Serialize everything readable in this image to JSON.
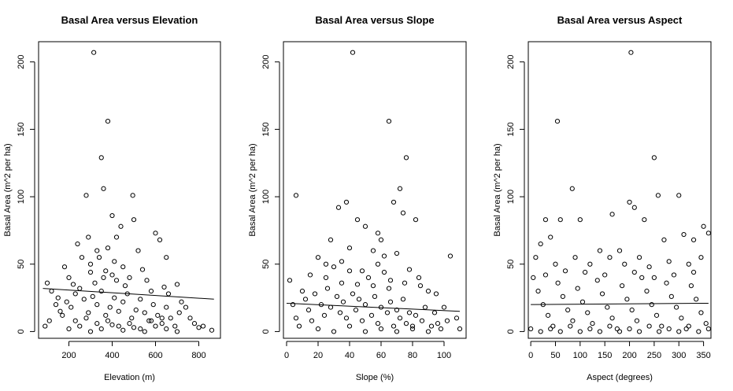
{
  "chart_data": [
    {
      "type": "scatter",
      "title": "Basal Area versus Elevation",
      "xlabel": "Elevation (m)",
      "ylabel": "Basal Area (m^2 per ha)",
      "xlim": [
        60,
        900
      ],
      "ylim": [
        -5,
        215
      ],
      "xticks": [
        200,
        400,
        600,
        800
      ],
      "yticks": [
        0,
        50,
        100,
        150,
        200
      ],
      "regression": {
        "x": [
          80,
          870
        ],
        "y": [
          32,
          24
        ]
      },
      "points": [
        [
          315,
          207
        ],
        [
          380,
          156
        ],
        [
          350,
          129
        ],
        [
          280,
          101
        ],
        [
          495,
          101
        ],
        [
          360,
          106
        ],
        [
          400,
          86
        ],
        [
          440,
          78
        ],
        [
          500,
          83
        ],
        [
          600,
          73
        ],
        [
          620,
          68
        ],
        [
          240,
          65
        ],
        [
          290,
          70
        ],
        [
          420,
          70
        ],
        [
          520,
          60
        ],
        [
          650,
          55
        ],
        [
          180,
          48
        ],
        [
          200,
          40
        ],
        [
          220,
          35
        ],
        [
          260,
          55
        ],
        [
          300,
          50
        ],
        [
          330,
          60
        ],
        [
          370,
          45
        ],
        [
          410,
          52
        ],
        [
          450,
          48
        ],
        [
          480,
          40
        ],
        [
          540,
          46
        ],
        [
          560,
          38
        ],
        [
          580,
          30
        ],
        [
          640,
          33
        ],
        [
          660,
          28
        ],
        [
          700,
          35
        ],
        [
          720,
          22
        ],
        [
          740,
          18
        ],
        [
          760,
          10
        ],
        [
          780,
          6
        ],
        [
          800,
          3
        ],
        [
          820,
          4
        ],
        [
          860,
          1
        ],
        [
          120,
          30
        ],
        [
          140,
          20
        ],
        [
          160,
          15
        ],
        [
          100,
          36
        ],
        [
          110,
          8
        ],
        [
          90,
          4
        ],
        [
          150,
          25
        ],
        [
          170,
          12
        ],
        [
          190,
          22
        ],
        [
          210,
          18
        ],
        [
          230,
          28
        ],
        [
          250,
          32
        ],
        [
          270,
          24
        ],
        [
          290,
          14
        ],
        [
          310,
          26
        ],
        [
          330,
          20
        ],
        [
          350,
          30
        ],
        [
          370,
          12
        ],
        [
          390,
          18
        ],
        [
          410,
          25
        ],
        [
          430,
          15
        ],
        [
          450,
          22
        ],
        [
          470,
          28
        ],
        [
          490,
          10
        ],
        [
          510,
          16
        ],
        [
          530,
          24
        ],
        [
          550,
          14
        ],
        [
          570,
          8
        ],
        [
          590,
          20
        ],
        [
          610,
          12
        ],
        [
          630,
          6
        ],
        [
          650,
          18
        ],
        [
          670,
          10
        ],
        [
          690,
          4
        ],
        [
          710,
          14
        ],
        [
          200,
          2
        ],
        [
          250,
          4
        ],
        [
          300,
          0
        ],
        [
          350,
          2
        ],
        [
          400,
          5
        ],
        [
          450,
          1
        ],
        [
          500,
          3
        ],
        [
          550,
          0
        ],
        [
          600,
          4
        ],
        [
          650,
          2
        ],
        [
          700,
          0
        ],
        [
          230,
          8
        ],
        [
          280,
          10
        ],
        [
          330,
          6
        ],
        [
          380,
          8
        ],
        [
          430,
          4
        ],
        [
          480,
          6
        ],
        [
          530,
          2
        ],
        [
          580,
          8
        ],
        [
          630,
          10
        ],
        [
          320,
          36
        ],
        [
          360,
          40
        ],
        [
          400,
          42
        ],
        [
          340,
          55
        ],
        [
          380,
          62
        ],
        [
          420,
          38
        ],
        [
          460,
          34
        ],
        [
          300,
          44
        ]
      ]
    },
    {
      "type": "scatter",
      "title": "Basal Area versus Slope",
      "xlabel": "Slope (%)",
      "ylabel": "Basal Area (m^2 per ha)",
      "xlim": [
        -2,
        114
      ],
      "ylim": [
        -5,
        215
      ],
      "xticks": [
        0,
        20,
        40,
        60,
        80,
        100
      ],
      "yticks": [
        0,
        50,
        100,
        150,
        200
      ],
      "regression": {
        "x": [
          0,
          110
        ],
        "y": [
          21,
          15
        ]
      },
      "points": [
        [
          42,
          207
        ],
        [
          65,
          156
        ],
        [
          76,
          129
        ],
        [
          6,
          101
        ],
        [
          72,
          106
        ],
        [
          68,
          96
        ],
        [
          74,
          88
        ],
        [
          33,
          92
        ],
        [
          38,
          96
        ],
        [
          50,
          78
        ],
        [
          58,
          73
        ],
        [
          82,
          83
        ],
        [
          45,
          83
        ],
        [
          28,
          68
        ],
        [
          60,
          68
        ],
        [
          40,
          62
        ],
        [
          55,
          60
        ],
        [
          70,
          58
        ],
        [
          20,
          55
        ],
        [
          25,
          50
        ],
        [
          30,
          48
        ],
        [
          35,
          52
        ],
        [
          48,
          45
        ],
        [
          52,
          40
        ],
        [
          62,
          44
        ],
        [
          66,
          38
        ],
        [
          78,
          46
        ],
        [
          84,
          40
        ],
        [
          90,
          30
        ],
        [
          95,
          28
        ],
        [
          100,
          18
        ],
        [
          104,
          56
        ],
        [
          108,
          10
        ],
        [
          110,
          2
        ],
        [
          2,
          38
        ],
        [
          4,
          20
        ],
        [
          6,
          10
        ],
        [
          8,
          4
        ],
        [
          10,
          30
        ],
        [
          12,
          24
        ],
        [
          14,
          16
        ],
        [
          16,
          8
        ],
        [
          18,
          28
        ],
        [
          22,
          20
        ],
        [
          24,
          12
        ],
        [
          26,
          32
        ],
        [
          28,
          18
        ],
        [
          32,
          26
        ],
        [
          34,
          14
        ],
        [
          36,
          22
        ],
        [
          38,
          10
        ],
        [
          42,
          28
        ],
        [
          44,
          16
        ],
        [
          46,
          24
        ],
        [
          48,
          8
        ],
        [
          50,
          20
        ],
        [
          54,
          12
        ],
        [
          56,
          26
        ],
        [
          58,
          6
        ],
        [
          60,
          18
        ],
        [
          64,
          14
        ],
        [
          66,
          22
        ],
        [
          68,
          4
        ],
        [
          70,
          16
        ],
        [
          72,
          10
        ],
        [
          74,
          24
        ],
        [
          76,
          6
        ],
        [
          78,
          14
        ],
        [
          80,
          2
        ],
        [
          82,
          12
        ],
        [
          86,
          8
        ],
        [
          88,
          18
        ],
        [
          92,
          4
        ],
        [
          94,
          14
        ],
        [
          96,
          6
        ],
        [
          98,
          2
        ],
        [
          102,
          8
        ],
        [
          20,
          2
        ],
        [
          30,
          0
        ],
        [
          40,
          4
        ],
        [
          50,
          0
        ],
        [
          60,
          2
        ],
        [
          70,
          0
        ],
        [
          80,
          4
        ],
        [
          90,
          0
        ],
        [
          45,
          35
        ],
        [
          55,
          34
        ],
        [
          65,
          32
        ],
        [
          35,
          36
        ],
        [
          25,
          40
        ],
        [
          15,
          42
        ],
        [
          75,
          36
        ],
        [
          85,
          34
        ],
        [
          58,
          50
        ],
        [
          62,
          56
        ],
        [
          40,
          45
        ]
      ]
    },
    {
      "type": "scatter",
      "title": "Basal Area versus Aspect",
      "xlabel": "Aspect (degrees)",
      "ylabel": "Basal Area (m^2 per ha)",
      "xlim": [
        -5,
        365
      ],
      "ylim": [
        -5,
        215
      ],
      "xticks": [
        0,
        50,
        100,
        150,
        200,
        250,
        300,
        350
      ],
      "yticks": [
        0,
        50,
        100,
        150,
        200
      ],
      "regression": {
        "x": [
          0,
          360
        ],
        "y": [
          20,
          21
        ]
      },
      "points": [
        [
          203,
          207
        ],
        [
          54,
          156
        ],
        [
          250,
          129
        ],
        [
          84,
          106
        ],
        [
          258,
          101
        ],
        [
          300,
          101
        ],
        [
          200,
          96
        ],
        [
          210,
          92
        ],
        [
          30,
          83
        ],
        [
          60,
          83
        ],
        [
          100,
          83
        ],
        [
          165,
          87
        ],
        [
          230,
          83
        ],
        [
          350,
          78
        ],
        [
          20,
          65
        ],
        [
          40,
          70
        ],
        [
          140,
          60
        ],
        [
          180,
          60
        ],
        [
          270,
          68
        ],
        [
          310,
          72
        ],
        [
          330,
          68
        ],
        [
          360,
          73
        ],
        [
          10,
          55
        ],
        [
          50,
          50
        ],
        [
          90,
          55
        ],
        [
          120,
          50
        ],
        [
          160,
          55
        ],
        [
          190,
          50
        ],
        [
          220,
          55
        ],
        [
          240,
          48
        ],
        [
          280,
          52
        ],
        [
          320,
          50
        ],
        [
          345,
          55
        ],
        [
          5,
          40
        ],
        [
          15,
          30
        ],
        [
          25,
          20
        ],
        [
          35,
          12
        ],
        [
          45,
          4
        ],
        [
          55,
          36
        ],
        [
          65,
          26
        ],
        [
          75,
          16
        ],
        [
          85,
          8
        ],
        [
          95,
          32
        ],
        [
          105,
          22
        ],
        [
          115,
          14
        ],
        [
          125,
          6
        ],
        [
          135,
          38
        ],
        [
          145,
          28
        ],
        [
          155,
          18
        ],
        [
          165,
          10
        ],
        [
          175,
          2
        ],
        [
          185,
          34
        ],
        [
          195,
          24
        ],
        [
          205,
          16
        ],
        [
          215,
          8
        ],
        [
          225,
          40
        ],
        [
          235,
          30
        ],
        [
          245,
          20
        ],
        [
          255,
          12
        ],
        [
          265,
          4
        ],
        [
          275,
          36
        ],
        [
          285,
          26
        ],
        [
          295,
          18
        ],
        [
          305,
          10
        ],
        [
          315,
          2
        ],
        [
          325,
          34
        ],
        [
          335,
          24
        ],
        [
          345,
          14
        ],
        [
          355,
          6
        ],
        [
          0,
          2
        ],
        [
          20,
          0
        ],
        [
          40,
          2
        ],
        [
          60,
          0
        ],
        [
          80,
          4
        ],
        [
          100,
          0
        ],
        [
          120,
          2
        ],
        [
          140,
          0
        ],
        [
          160,
          4
        ],
        [
          180,
          0
        ],
        [
          200,
          2
        ],
        [
          220,
          0
        ],
        [
          240,
          4
        ],
        [
          260,
          0
        ],
        [
          280,
          2
        ],
        [
          300,
          0
        ],
        [
          320,
          4
        ],
        [
          340,
          0
        ],
        [
          360,
          2
        ],
        [
          70,
          45
        ],
        [
          110,
          44
        ],
        [
          150,
          42
        ],
        [
          210,
          44
        ],
        [
          250,
          40
        ],
        [
          290,
          42
        ],
        [
          330,
          44
        ],
        [
          30,
          42
        ]
      ]
    }
  ]
}
